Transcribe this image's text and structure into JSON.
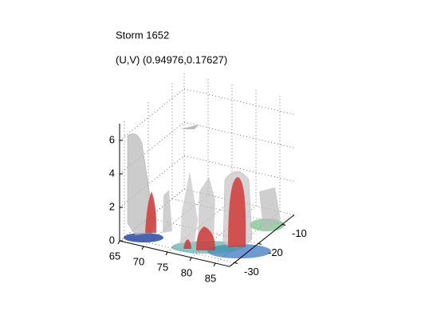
{
  "chart_data": {
    "type": "isosurface",
    "title": "Storm 1652",
    "subtitle": "(U,V) (0.94976,0.17627)",
    "xlim": [
      65,
      88
    ],
    "xticks": [
      65,
      70,
      75,
      80,
      85
    ],
    "ylim": [
      -32,
      -5
    ],
    "yticks": [
      -30,
      -20,
      -10
    ],
    "zlim": [
      0,
      7
    ],
    "zticks": [
      0,
      2,
      4,
      6
    ],
    "grid": true
  }
}
